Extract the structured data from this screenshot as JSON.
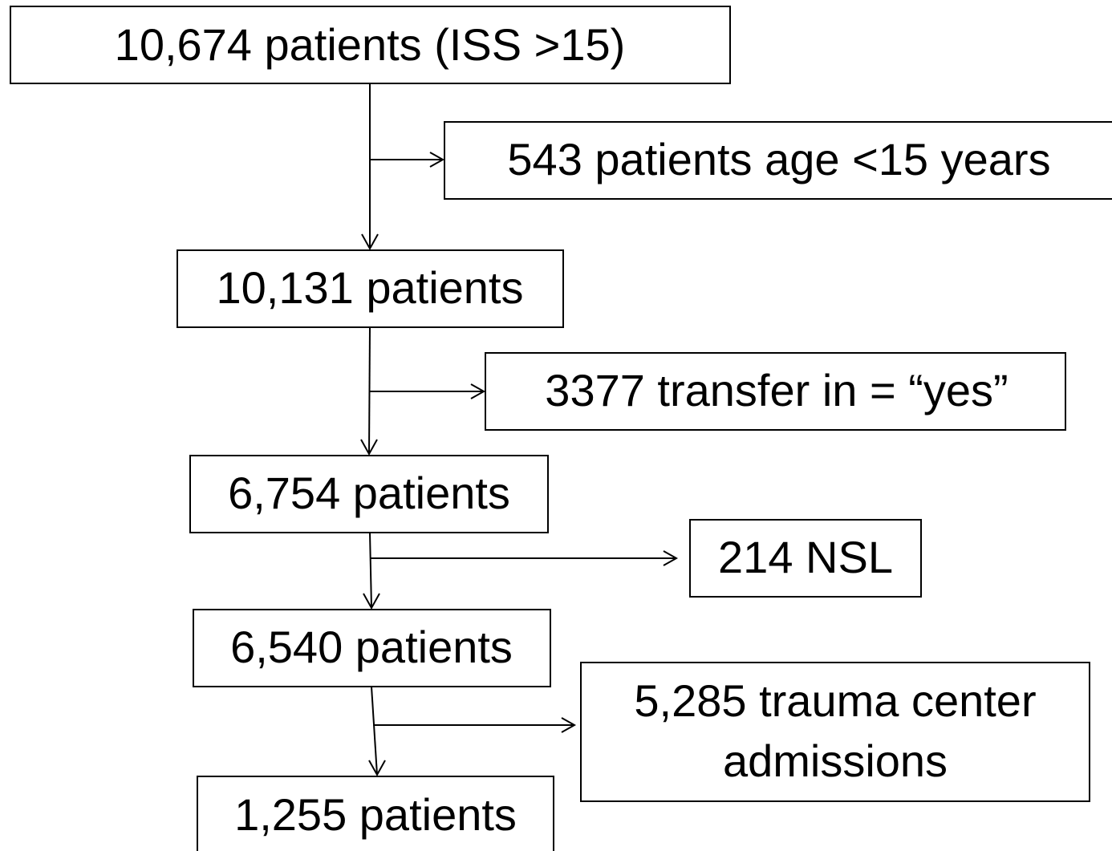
{
  "nodes": [
    {
      "label": "10,674 patients (ISS >15)"
    },
    {
      "label": "543 patients age <15 years"
    },
    {
      "label": "10,131 patients"
    },
    {
      "label": "3377 transfer in = “yes”"
    },
    {
      "label": "6,754 patients"
    },
    {
      "label": "214 NSL"
    },
    {
      "label": "6,540 patients"
    },
    {
      "lines": [
        "5,285 trauma center",
        "admissions"
      ]
    },
    {
      "label": "1,255 patients"
    }
  ]
}
